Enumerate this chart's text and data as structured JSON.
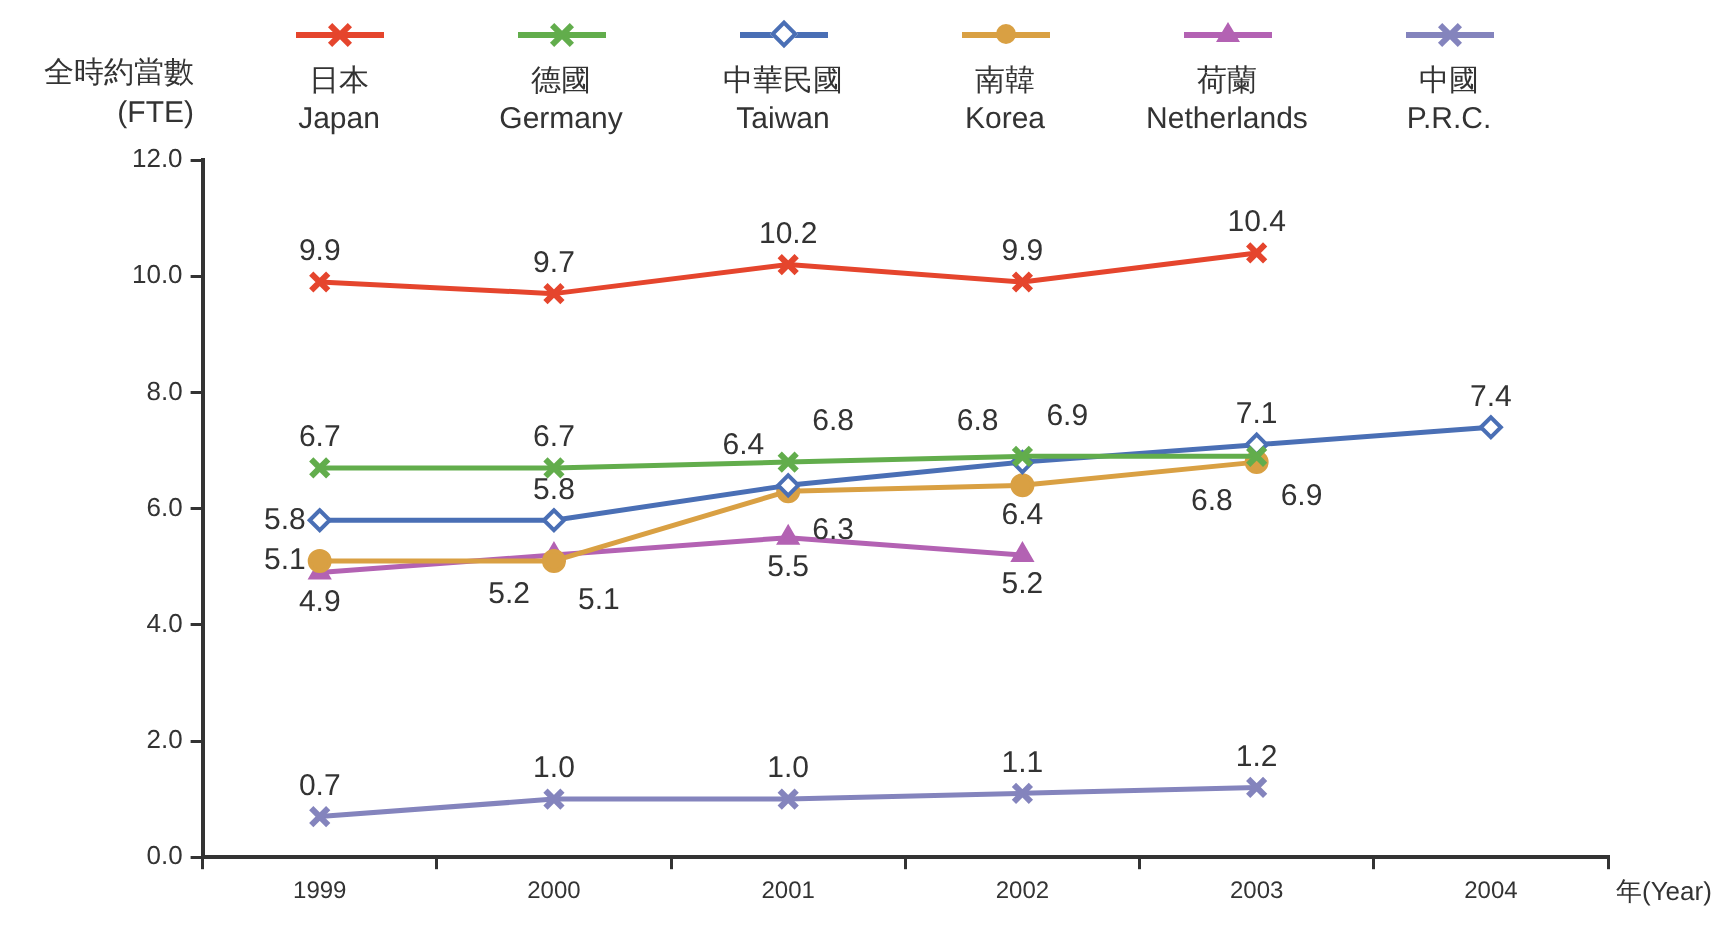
{
  "chart_data": {
    "type": "line",
    "ylabel": "全時約當數 (FTE)",
    "xlabel": "年(Year)",
    "legend": "top",
    "categories": [
      "1999",
      "2000",
      "2001",
      "2002",
      "2003",
      "2004"
    ],
    "ylim": [
      0,
      12
    ],
    "yticks": [
      {
        "value": 0,
        "label": "0.0"
      },
      {
        "value": 2,
        "label": "2.0"
      },
      {
        "value": 4,
        "label": "4.0"
      },
      {
        "value": 6,
        "label": "6.0"
      },
      {
        "value": 8,
        "label": "8.0"
      },
      {
        "value": 10,
        "label": "10.0"
      },
      {
        "value": 12,
        "label": "12.0"
      }
    ],
    "series": [
      {
        "name": "日本 Japan",
        "color": "#e5452d",
        "marker": "cross",
        "values": [
          9.9,
          9.7,
          10.2,
          9.9,
          10.4,
          null
        ],
        "value_labels": [
          "9.9",
          "9.7",
          "10.2",
          "9.9",
          "10.4",
          null
        ]
      },
      {
        "name": "德國 Germany",
        "color": "#62ad4c",
        "marker": "cross",
        "values": [
          6.7,
          6.7,
          6.8,
          6.9,
          6.9,
          null
        ],
        "value_labels": [
          "6.7",
          "6.7",
          "6.8",
          "6.9",
          "6.9",
          null
        ]
      },
      {
        "name": "中華民國 Taiwan",
        "color": "#4a6fb5",
        "marker": "diamond",
        "values": [
          5.8,
          5.8,
          6.4,
          6.8,
          7.1,
          7.4
        ],
        "value_labels": [
          "5.8",
          "5.8",
          "6.4",
          "6.8",
          "7.1",
          "7.4"
        ]
      },
      {
        "name": "南韓 Korea",
        "color": "#d9a043",
        "marker": "circle",
        "values": [
          5.1,
          5.1,
          6.3,
          6.4,
          6.8,
          null
        ],
        "value_labels": [
          "5.1",
          "5.1",
          "6.3",
          "6.4",
          "6.8",
          null
        ]
      },
      {
        "name": "荷蘭 Netherlands",
        "color": "#b362b3",
        "marker": "triangle",
        "values": [
          4.9,
          5.2,
          5.5,
          5.2,
          null,
          null
        ],
        "value_labels": [
          "4.9",
          "5.2",
          "5.5",
          "5.2",
          null,
          null
        ]
      },
      {
        "name": "中國 P.R.C.",
        "color": "#8484bd",
        "marker": "cross",
        "values": [
          0.7,
          1.0,
          1.0,
          1.1,
          1.2,
          null
        ],
        "value_labels": [
          "0.7",
          "1.0",
          "1.0",
          "1.1",
          "1.2",
          null
        ]
      }
    ]
  }
}
